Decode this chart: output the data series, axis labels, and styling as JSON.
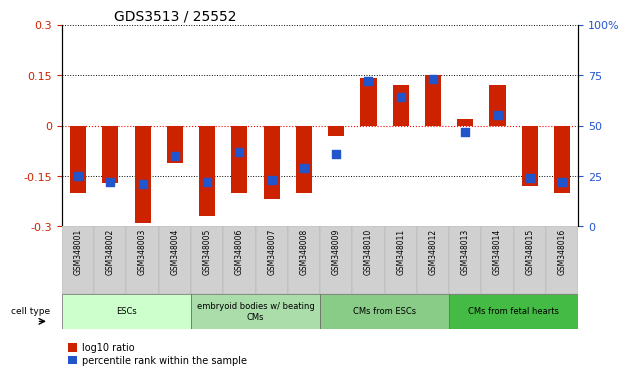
{
  "title": "GDS3513 / 25552",
  "samples": [
    "GSM348001",
    "GSM348002",
    "GSM348003",
    "GSM348004",
    "GSM348005",
    "GSM348006",
    "GSM348007",
    "GSM348008",
    "GSM348009",
    "GSM348010",
    "GSM348011",
    "GSM348012",
    "GSM348013",
    "GSM348014",
    "GSM348015",
    "GSM348016"
  ],
  "log10_ratio": [
    -0.2,
    -0.17,
    -0.29,
    -0.11,
    -0.27,
    -0.2,
    -0.22,
    -0.2,
    -0.03,
    0.14,
    0.12,
    0.15,
    0.02,
    0.12,
    -0.18,
    -0.2
  ],
  "percentile_rank": [
    25,
    22,
    21,
    35,
    22,
    37,
    23,
    29,
    36,
    72,
    64,
    73,
    47,
    55,
    24,
    22
  ],
  "group_colors": [
    "#ccffcc",
    "#aaddaa",
    "#88cc88",
    "#44bb44"
  ],
  "group_labels": [
    "ESCs",
    "embryoid bodies w/ beating\nCMs",
    "CMs from ESCs",
    "CMs from fetal hearts"
  ],
  "group_ranges": [
    [
      0,
      3
    ],
    [
      4,
      7
    ],
    [
      8,
      11
    ],
    [
      12,
      15
    ]
  ],
  "ylim_left": [
    -0.3,
    0.3
  ],
  "ylim_right": [
    0,
    100
  ],
  "bar_color": "#cc2200",
  "dot_color": "#2255cc",
  "bar_width": 0.5,
  "dot_size": 30,
  "title_fontsize": 10,
  "tick_fontsize": 8,
  "ytick_left": [
    -0.3,
    -0.15,
    0,
    0.15,
    0.3
  ],
  "ytick_right": [
    0,
    25,
    50,
    75,
    100
  ],
  "ytick_right_labels": [
    "0",
    "25",
    "50",
    "75",
    "100%"
  ]
}
